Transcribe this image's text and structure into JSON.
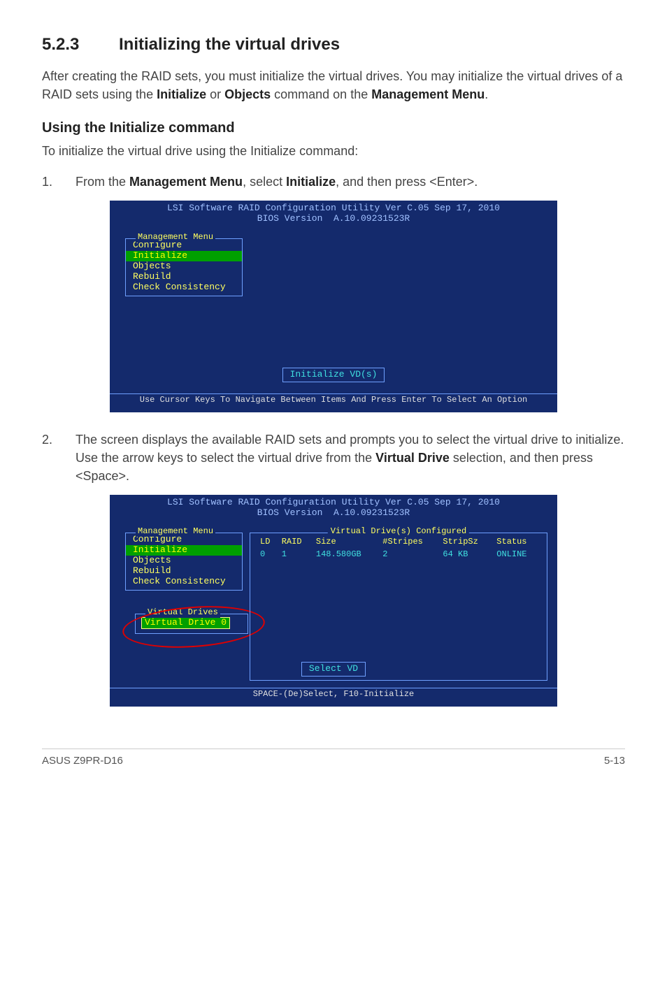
{
  "section": {
    "number": "5.2.3",
    "title": "Initializing the virtual drives"
  },
  "intro": "After creating the RAID sets, you must initialize the virtual drives. You may initialize the virtual drives of a RAID sets using the ",
  "intro_b1": "Initialize",
  "intro_mid": " or ",
  "intro_b2": "Objects",
  "intro_mid2": " command on the ",
  "intro_b3": "Management Menu",
  "intro_end": ".",
  "subhead": "Using the Initialize command",
  "sublead": "To initialize the virtual drive using the Initialize command:",
  "steps": {
    "s1": {
      "num": "1.",
      "pre": "From the ",
      "b1": "Management Menu",
      "mid": ", select ",
      "b2": "Initialize",
      "post": ", and then press <Enter>."
    },
    "s2": {
      "num": "2.",
      "pre": "The screen displays the available RAID sets and prompts you to select the virtual drive to initialize. Use the arrow keys to select the virtual drive from the ",
      "b1": "Virtual Drive",
      "post": " selection, and then press <Space>."
    }
  },
  "bios": {
    "title_prefix": "LSI Software RAID Configuration Utility Ver C.05 Sep 17, 2010",
    "title_bios": "BIOS Version",
    "title_ver": "A.10.09231523R",
    "menu_label": "Management Menu",
    "menu_items": {
      "configure": "Configure",
      "initialize": "Initialize",
      "objects": "Objects",
      "rebuild": "Rebuild",
      "check": "Check Consistency"
    },
    "init_vd": "Initialize VD(s)",
    "footer1": "Use Cursor Keys To Navigate Between Items And Press Enter To Select An Option",
    "vd_box_label": "Virtual Drives",
    "vd_item": "Virtual Drive 0",
    "table_label": "Virtual Drive(s) Configured",
    "cols": {
      "ld": "LD",
      "raid": "RAID",
      "size": "Size",
      "stripes": "#Stripes",
      "stripsz": "StripSz",
      "status": "Status"
    },
    "row": {
      "ld": "0",
      "raid": "1",
      "size": "148.580GB",
      "stripes": "2",
      "stripsz": "64 KB",
      "status": "ONLINE"
    },
    "select_vd": "Select VD",
    "footer2": "SPACE-(De)Select,  F10-Initialize"
  },
  "footer": {
    "left": "ASUS Z9PR-D16",
    "right": "5-13"
  }
}
